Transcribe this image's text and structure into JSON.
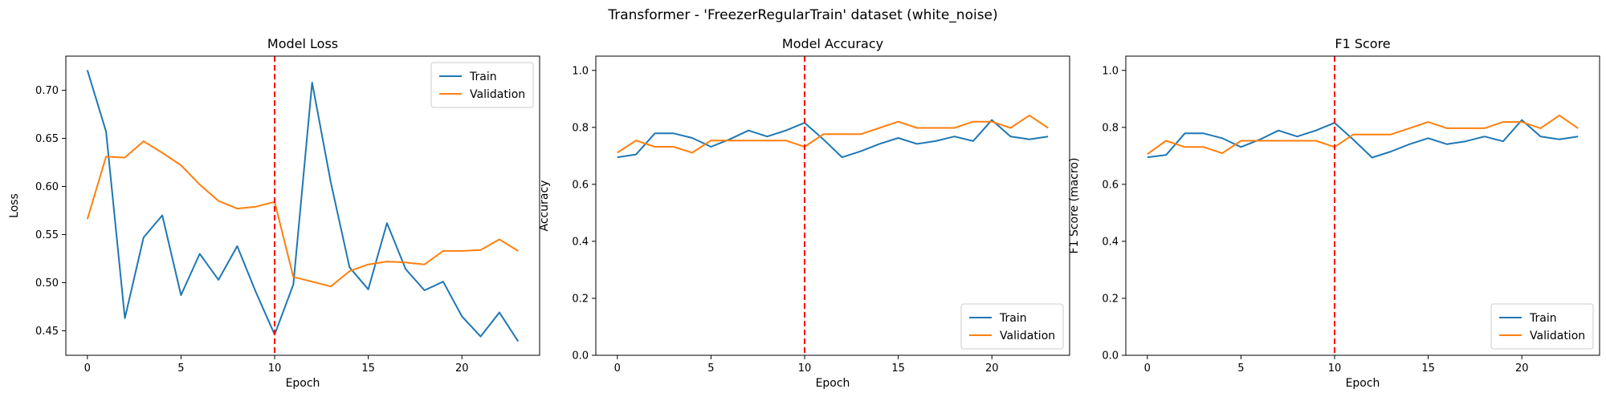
{
  "suptitle": "Transformer - 'FreezerRegularTrain' dataset (white_noise)",
  "colors": {
    "train": "#1f77b4",
    "validation": "#ff7f0e",
    "marker_line": "#ff0000"
  },
  "chart_data": [
    {
      "type": "line",
      "title": "Model Loss",
      "xlabel": "Epoch",
      "ylabel": "Loss",
      "xlim": [
        -1.15,
        24.15
      ],
      "ylim": [
        0.4245,
        0.7355
      ],
      "xticks": [
        0,
        5,
        10,
        15,
        20
      ],
      "yticks": [
        0.45,
        0.5,
        0.55,
        0.6,
        0.65,
        0.7
      ],
      "ytick_labels": [
        "0.45",
        "0.50",
        "0.55",
        "0.60",
        "0.65",
        "0.70"
      ],
      "vline_x": 10,
      "legend_loc": "top-right",
      "x": [
        0,
        1,
        2,
        3,
        4,
        5,
        6,
        7,
        8,
        9,
        10,
        11,
        12,
        13,
        14,
        15,
        16,
        17,
        18,
        19,
        20,
        21,
        22,
        23
      ],
      "series": [
        {
          "name": "Train",
          "values": [
            0.721,
            0.657,
            0.463,
            0.547,
            0.57,
            0.487,
            0.53,
            0.503,
            0.538,
            0.49,
            0.446,
            0.498,
            0.708,
            0.604,
            0.516,
            0.493,
            0.562,
            0.514,
            0.492,
            0.501,
            0.465,
            0.444,
            0.469,
            0.439
          ]
        },
        {
          "name": "Validation",
          "values": [
            0.566,
            0.631,
            0.63,
            0.647,
            0.635,
            0.622,
            0.602,
            0.585,
            0.577,
            0.579,
            0.584,
            0.506,
            0.501,
            0.496,
            0.512,
            0.519,
            0.522,
            0.521,
            0.519,
            0.533,
            0.533,
            0.534,
            0.545,
            0.533
          ]
        }
      ]
    },
    {
      "type": "line",
      "title": "Model Accuracy",
      "xlabel": "Epoch",
      "ylabel": "Accuracy",
      "xlim": [
        -1.15,
        24.15
      ],
      "ylim": [
        0,
        1.05
      ],
      "xticks": [
        0,
        5,
        10,
        15,
        20
      ],
      "yticks": [
        0.0,
        0.2,
        0.4,
        0.6,
        0.8,
        1.0
      ],
      "ytick_labels": [
        "0.0",
        "0.2",
        "0.4",
        "0.6",
        "0.8",
        "1.0"
      ],
      "vline_x": 10,
      "legend_loc": "lower-right",
      "x": [
        0,
        1,
        2,
        3,
        4,
        5,
        6,
        7,
        8,
        9,
        10,
        11,
        12,
        13,
        14,
        15,
        16,
        17,
        18,
        19,
        20,
        21,
        22,
        23
      ],
      "series": [
        {
          "name": "Train",
          "values": [
            0.695,
            0.705,
            0.779,
            0.779,
            0.763,
            0.732,
            0.758,
            0.789,
            0.768,
            0.789,
            0.816,
            0.758,
            0.695,
            0.716,
            0.742,
            0.763,
            0.742,
            0.752,
            0.768,
            0.752,
            0.826,
            0.768,
            0.758,
            0.768
          ]
        },
        {
          "name": "Validation",
          "values": [
            0.711,
            0.754,
            0.732,
            0.732,
            0.711,
            0.754,
            0.754,
            0.754,
            0.754,
            0.754,
            0.732,
            0.776,
            0.776,
            0.776,
            0.798,
            0.82,
            0.798,
            0.798,
            0.798,
            0.82,
            0.82,
            0.798,
            0.842,
            0.798
          ]
        }
      ]
    },
    {
      "type": "line",
      "title": "F1 Score",
      "xlabel": "Epoch",
      "ylabel": "F1 Score (macro)",
      "xlim": [
        -1.15,
        24.15
      ],
      "ylim": [
        0,
        1.05
      ],
      "xticks": [
        0,
        5,
        10,
        15,
        20
      ],
      "yticks": [
        0.0,
        0.2,
        0.4,
        0.6,
        0.8,
        1.0
      ],
      "ytick_labels": [
        "0.0",
        "0.2",
        "0.4",
        "0.6",
        "0.8",
        "1.0"
      ],
      "vline_x": 10,
      "legend_loc": "lower-right",
      "x": [
        0,
        1,
        2,
        3,
        4,
        5,
        6,
        7,
        8,
        9,
        10,
        11,
        12,
        13,
        14,
        15,
        16,
        17,
        18,
        19,
        20,
        21,
        22,
        23
      ],
      "series": [
        {
          "name": "Train",
          "values": [
            0.695,
            0.703,
            0.779,
            0.779,
            0.762,
            0.731,
            0.757,
            0.789,
            0.768,
            0.789,
            0.816,
            0.757,
            0.694,
            0.715,
            0.741,
            0.762,
            0.741,
            0.751,
            0.768,
            0.751,
            0.826,
            0.768,
            0.758,
            0.768
          ]
        },
        {
          "name": "Validation",
          "values": [
            0.706,
            0.753,
            0.731,
            0.731,
            0.709,
            0.753,
            0.753,
            0.753,
            0.753,
            0.753,
            0.731,
            0.775,
            0.775,
            0.775,
            0.797,
            0.819,
            0.797,
            0.797,
            0.797,
            0.819,
            0.819,
            0.797,
            0.842,
            0.797
          ]
        }
      ]
    }
  ]
}
